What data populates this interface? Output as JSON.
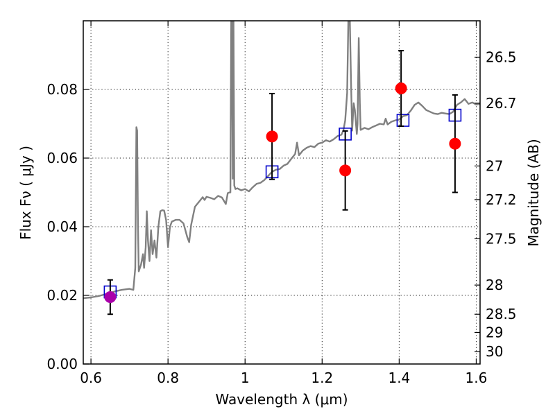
{
  "chart_data": {
    "type": "scatter",
    "x_axis": {
      "label": "Wavelength  λ (μm)",
      "range": [
        0.58,
        1.61
      ],
      "ticks": [
        0.6,
        0.8,
        1.0,
        1.2,
        1.4,
        1.6
      ],
      "tick_labels": [
        "0.6",
        "0.8",
        "1",
        "1.2",
        "1.4",
        "1.6"
      ]
    },
    "y_axis_left": {
      "label": "Flux  Fν  ( μJy )",
      "range": [
        0.0,
        0.1
      ],
      "ticks": [
        0.0,
        0.02,
        0.04,
        0.06,
        0.08
      ],
      "tick_labels": [
        "0.00",
        "0.02",
        "0.04",
        "0.06",
        "0.08"
      ]
    },
    "y_axis_right": {
      "label": "Magnitude (AB)",
      "ticks": [
        {
          "label": "26.5",
          "flux": 0.0894
        },
        {
          "label": "26.7",
          "flux": 0.076
        },
        {
          "label": "27",
          "flux": 0.0577
        },
        {
          "label": "27.2",
          "flux": 0.0479
        },
        {
          "label": "27.5",
          "flux": 0.0365
        },
        {
          "label": "28",
          "flux": 0.023
        },
        {
          "label": "28.5",
          "flux": 0.0145
        },
        {
          "label": "29",
          "flux": 0.0092
        },
        {
          "label": "30",
          "flux": 0.0036
        }
      ]
    },
    "grid": true,
    "series": [
      {
        "kind": "line",
        "color": "#808080",
        "points": [
          [
            0.58,
            0.0192
          ],
          [
            0.6,
            0.0194
          ],
          [
            0.62,
            0.0198
          ],
          [
            0.64,
            0.0204
          ],
          [
            0.66,
            0.0211
          ],
          [
            0.68,
            0.0216
          ],
          [
            0.7,
            0.0219
          ],
          [
            0.71,
            0.0216
          ],
          [
            0.715,
            0.028
          ],
          [
            0.718,
            0.069
          ],
          [
            0.72,
            0.068
          ],
          [
            0.722,
            0.04
          ],
          [
            0.724,
            0.027
          ],
          [
            0.73,
            0.029
          ],
          [
            0.735,
            0.032
          ],
          [
            0.738,
            0.028
          ],
          [
            0.742,
            0.034
          ],
          [
            0.745,
            0.0445
          ],
          [
            0.748,
            0.036
          ],
          [
            0.752,
            0.03
          ],
          [
            0.756,
            0.039
          ],
          [
            0.76,
            0.032
          ],
          [
            0.765,
            0.036
          ],
          [
            0.77,
            0.031
          ],
          [
            0.775,
            0.04
          ],
          [
            0.78,
            0.0445
          ],
          [
            0.785,
            0.0448
          ],
          [
            0.79,
            0.0447
          ],
          [
            0.795,
            0.042
          ],
          [
            0.8,
            0.034
          ],
          [
            0.805,
            0.04
          ],
          [
            0.81,
            0.0415
          ],
          [
            0.82,
            0.042
          ],
          [
            0.83,
            0.042
          ],
          [
            0.84,
            0.041
          ],
          [
            0.845,
            0.039
          ],
          [
            0.85,
            0.037
          ],
          [
            0.855,
            0.0355
          ],
          [
            0.86,
            0.0405
          ],
          [
            0.87,
            0.0458
          ],
          [
            0.88,
            0.0472
          ],
          [
            0.89,
            0.0486
          ],
          [
            0.895,
            0.0478
          ],
          [
            0.9,
            0.0487
          ],
          [
            0.91,
            0.0484
          ],
          [
            0.92,
            0.048
          ],
          [
            0.93,
            0.049
          ],
          [
            0.94,
            0.0485
          ],
          [
            0.95,
            0.0466
          ],
          [
            0.955,
            0.0498
          ],
          [
            0.96,
            0.05
          ],
          [
            0.962,
            0.05
          ],
          [
            0.964,
            0.1
          ],
          [
            0.966,
            0.1
          ],
          [
            0.968,
            0.054
          ],
          [
            0.97,
            0.1
          ],
          [
            0.972,
            0.052
          ],
          [
            0.975,
            0.051
          ],
          [
            0.98,
            0.0512
          ],
          [
            0.99,
            0.0506
          ],
          [
            1.0,
            0.051
          ],
          [
            1.01,
            0.0503
          ],
          [
            1.02,
            0.0515
          ],
          [
            1.03,
            0.0525
          ],
          [
            1.04,
            0.0528
          ],
          [
            1.05,
            0.0536
          ],
          [
            1.06,
            0.0548
          ],
          [
            1.07,
            0.056
          ],
          [
            1.08,
            0.0566
          ],
          [
            1.09,
            0.0568
          ],
          [
            1.1,
            0.0578
          ],
          [
            1.11,
            0.0583
          ],
          [
            1.12,
            0.0598
          ],
          [
            1.13,
            0.0612
          ],
          [
            1.135,
            0.0645
          ],
          [
            1.14,
            0.0608
          ],
          [
            1.15,
            0.0622
          ],
          [
            1.16,
            0.063
          ],
          [
            1.17,
            0.0635
          ],
          [
            1.18,
            0.0632
          ],
          [
            1.19,
            0.0642
          ],
          [
            1.2,
            0.0645
          ],
          [
            1.21,
            0.0652
          ],
          [
            1.22,
            0.0648
          ],
          [
            1.23,
            0.0655
          ],
          [
            1.24,
            0.0664
          ],
          [
            1.25,
            0.0668
          ],
          [
            1.255,
            0.068
          ],
          [
            1.26,
            0.071
          ],
          [
            1.265,
            0.079
          ],
          [
            1.268,
            0.1
          ],
          [
            1.272,
            0.1
          ],
          [
            1.275,
            0.082
          ],
          [
            1.278,
            0.068
          ],
          [
            1.282,
            0.076
          ],
          [
            1.285,
            0.074
          ],
          [
            1.29,
            0.067
          ],
          [
            1.292,
            0.07
          ],
          [
            1.295,
            0.095
          ],
          [
            1.298,
            0.076
          ],
          [
            1.3,
            0.0682
          ],
          [
            1.31,
            0.0688
          ],
          [
            1.32,
            0.0684
          ],
          [
            1.33,
            0.069
          ],
          [
            1.34,
            0.0695
          ],
          [
            1.35,
            0.07
          ],
          [
            1.36,
            0.0698
          ],
          [
            1.365,
            0.0715
          ],
          [
            1.37,
            0.0698
          ],
          [
            1.38,
            0.0706
          ],
          [
            1.39,
            0.071
          ],
          [
            1.4,
            0.0712
          ],
          [
            1.41,
            0.0722
          ],
          [
            1.42,
            0.0725
          ],
          [
            1.43,
            0.0738
          ],
          [
            1.44,
            0.0755
          ],
          [
            1.45,
            0.0762
          ],
          [
            1.46,
            0.0752
          ],
          [
            1.47,
            0.074
          ],
          [
            1.48,
            0.0735
          ],
          [
            1.49,
            0.073
          ],
          [
            1.5,
            0.0728
          ],
          [
            1.51,
            0.0732
          ],
          [
            1.52,
            0.073
          ],
          [
            1.53,
            0.0728
          ],
          [
            1.54,
            0.0735
          ],
          [
            1.55,
            0.0755
          ],
          [
            1.56,
            0.0762
          ],
          [
            1.57,
            0.0772
          ],
          [
            1.575,
            0.0765
          ],
          [
            1.58,
            0.0758
          ],
          [
            1.59,
            0.0762
          ],
          [
            1.6,
            0.0756
          ],
          [
            1.61,
            0.0758
          ]
        ]
      },
      {
        "kind": "markers",
        "marker": "open-square",
        "color": "#0000cc",
        "points": [
          [
            0.65,
            0.021
          ],
          [
            1.07,
            0.056
          ],
          [
            1.26,
            0.067
          ],
          [
            1.41,
            0.071
          ],
          [
            1.545,
            0.0725
          ]
        ]
      },
      {
        "kind": "markers",
        "marker": "circle",
        "color": "#ff0000",
        "points": [
          {
            "x": 1.07,
            "y": 0.0663,
            "err": 0.0125
          },
          {
            "x": 1.26,
            "y": 0.0564,
            "err": 0.0115
          },
          {
            "x": 1.405,
            "y": 0.0803,
            "err": 0.011
          },
          {
            "x": 1.545,
            "y": 0.0642,
            "err": 0.0142
          }
        ]
      },
      {
        "kind": "markers",
        "marker": "circle",
        "color": "#aa00aa",
        "points": [
          {
            "x": 0.65,
            "y": 0.0195,
            "err": 0.005
          }
        ]
      }
    ]
  }
}
